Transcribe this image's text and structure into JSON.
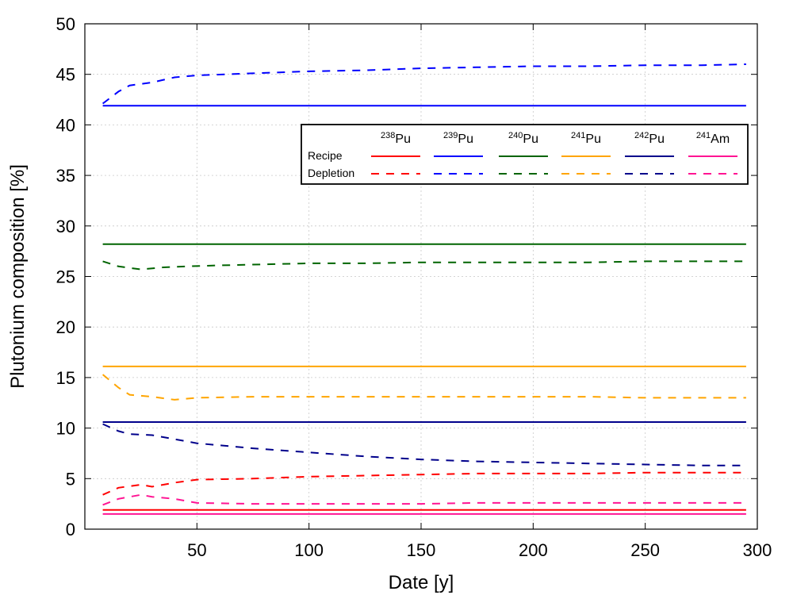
{
  "chart_data": {
    "type": "line",
    "xlabel": "Date [y]",
    "ylabel": "Plutonium composition [%]",
    "xlim": [
      0,
      300
    ],
    "ylim": [
      0,
      50
    ],
    "xticks": [
      50,
      100,
      150,
      200,
      250,
      300
    ],
    "yticks": [
      0,
      5,
      10,
      15,
      20,
      25,
      30,
      35,
      40,
      45,
      50
    ],
    "grid": true,
    "legend": {
      "placement": "top-right",
      "row_labels": {
        "recipe": "Recipe",
        "depletion": "Depletion"
      },
      "columns": [
        {
          "mass": "238",
          "element": "Pu",
          "color": "#ff0000"
        },
        {
          "mass": "239",
          "element": "Pu",
          "color": "#0000ff"
        },
        {
          "mass": "240",
          "element": "Pu",
          "color": "#006400"
        },
        {
          "mass": "241",
          "element": "Pu",
          "color": "#ffa500"
        },
        {
          "mass": "242",
          "element": "Pu",
          "color": "#00008b"
        },
        {
          "mass": "241",
          "element": "Am",
          "color": "#ff1493"
        }
      ]
    },
    "recipe_series": [
      {
        "isotope": "238Pu",
        "color": "#ff0000",
        "x": [
          8,
          295
        ],
        "y": [
          1.9,
          1.9
        ]
      },
      {
        "isotope": "239Pu",
        "color": "#0000ff",
        "x": [
          8,
          295
        ],
        "y": [
          41.9,
          41.9
        ]
      },
      {
        "isotope": "240Pu",
        "color": "#006400",
        "x": [
          8,
          295
        ],
        "y": [
          28.2,
          28.2
        ]
      },
      {
        "isotope": "241Pu",
        "color": "#ffa500",
        "x": [
          8,
          295
        ],
        "y": [
          16.1,
          16.1
        ]
      },
      {
        "isotope": "242Pu",
        "color": "#00008b",
        "x": [
          8,
          295
        ],
        "y": [
          10.6,
          10.6
        ]
      },
      {
        "isotope": "241Am",
        "color": "#ff1493",
        "x": [
          8,
          295
        ],
        "y": [
          1.5,
          1.5
        ]
      }
    ],
    "depletion_series": [
      {
        "isotope": "238Pu",
        "color": "#ff0000",
        "x": [
          8,
          15,
          25,
          30,
          40,
          50,
          75,
          100,
          125,
          150,
          175,
          200,
          225,
          250,
          275,
          295
        ],
        "y": [
          3.4,
          4.1,
          4.4,
          4.2,
          4.6,
          4.9,
          5.0,
          5.2,
          5.3,
          5.4,
          5.5,
          5.5,
          5.5,
          5.6,
          5.6,
          5.6
        ]
      },
      {
        "isotope": "239Pu",
        "color": "#0000ff",
        "x": [
          8,
          15,
          20,
          30,
          40,
          50,
          75,
          100,
          125,
          150,
          175,
          200,
          225,
          250,
          275,
          295
        ],
        "y": [
          42.1,
          43.3,
          43.9,
          44.2,
          44.7,
          44.9,
          45.1,
          45.3,
          45.4,
          45.6,
          45.7,
          45.8,
          45.8,
          45.9,
          45.9,
          46.0
        ]
      },
      {
        "isotope": "240Pu",
        "color": "#006400",
        "x": [
          8,
          15,
          25,
          35,
          45,
          60,
          80,
          100,
          125,
          150,
          175,
          200,
          225,
          250,
          275,
          295
        ],
        "y": [
          26.5,
          26.0,
          25.7,
          25.9,
          26.0,
          26.1,
          26.2,
          26.3,
          26.3,
          26.4,
          26.4,
          26.4,
          26.4,
          26.5,
          26.5,
          26.5
        ]
      },
      {
        "isotope": "241Pu",
        "color": "#ffa500",
        "x": [
          8,
          15,
          20,
          30,
          40,
          50,
          75,
          100,
          125,
          150,
          175,
          200,
          225,
          250,
          275,
          295
        ],
        "y": [
          15.3,
          14.0,
          13.3,
          13.1,
          12.8,
          13.0,
          13.1,
          13.1,
          13.1,
          13.1,
          13.1,
          13.1,
          13.1,
          13.0,
          13.0,
          13.0
        ]
      },
      {
        "isotope": "242Pu",
        "color": "#00008b",
        "x": [
          8,
          15,
          20,
          30,
          40,
          50,
          75,
          100,
          125,
          150,
          175,
          200,
          225,
          250,
          275,
          295
        ],
        "y": [
          10.4,
          9.7,
          9.4,
          9.3,
          8.9,
          8.5,
          8.0,
          7.6,
          7.2,
          6.9,
          6.7,
          6.6,
          6.5,
          6.4,
          6.3,
          6.3
        ]
      },
      {
        "isotope": "241Am",
        "color": "#ff1493",
        "x": [
          8,
          15,
          25,
          30,
          40,
          50,
          75,
          100,
          125,
          150,
          175,
          200,
          225,
          250,
          275,
          295
        ],
        "y": [
          2.4,
          3.0,
          3.4,
          3.2,
          3.0,
          2.6,
          2.5,
          2.5,
          2.5,
          2.5,
          2.6,
          2.6,
          2.6,
          2.6,
          2.6,
          2.6
        ]
      }
    ]
  }
}
